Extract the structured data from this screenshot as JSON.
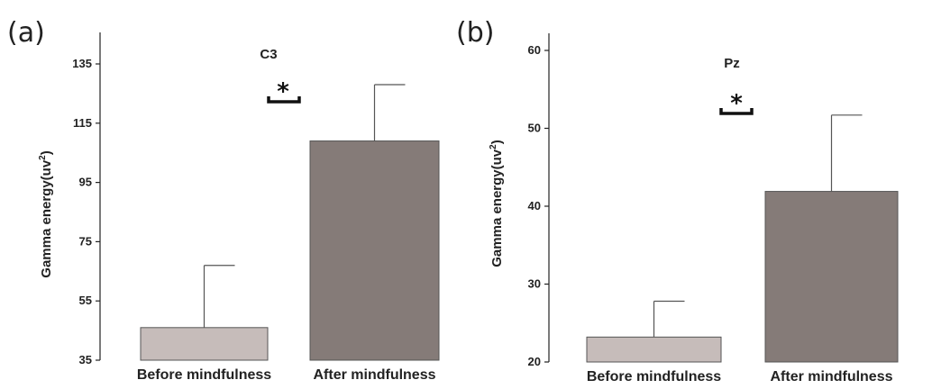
{
  "chart_data": [
    {
      "type": "bar",
      "panel_label": "(a)",
      "title": "C3",
      "ylabel": "Gamma energy(uv",
      "ylabel_sup": "2",
      "ylabel_close": ")",
      "categories": [
        "Before mindfulness",
        "After mindfulness"
      ],
      "values": [
        46,
        109
      ],
      "errors": [
        21,
        19
      ],
      "ylim": [
        35,
        145
      ],
      "yticks": [
        35,
        55,
        75,
        95,
        115,
        135
      ],
      "significance": "*",
      "colors": [
        "#c6bcba",
        "#857b78"
      ],
      "grid": false
    },
    {
      "type": "bar",
      "panel_label": "(b)",
      "title": "Pz",
      "ylabel": "Gamma energy(uv",
      "ylabel_sup": "2",
      "ylabel_close": ")",
      "categories": [
        "Before mindfulness",
        "After mindfulness"
      ],
      "values": [
        23.2,
        41.9
      ],
      "errors": [
        4.6,
        9.8
      ],
      "ylim": [
        20,
        62
      ],
      "yticks": [
        20,
        30,
        40,
        50,
        60
      ],
      "significance": "*",
      "colors": [
        "#c6bcba",
        "#857b78"
      ],
      "grid": false
    }
  ]
}
